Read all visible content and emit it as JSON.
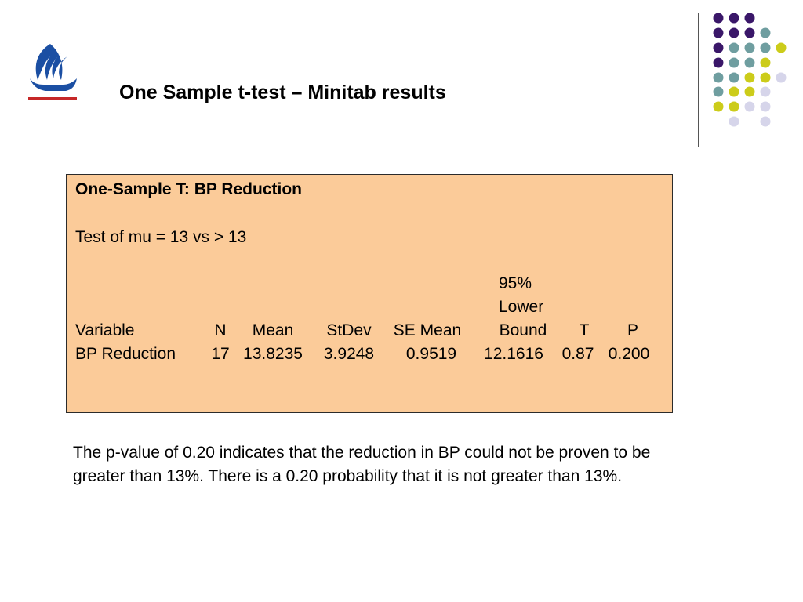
{
  "slide": {
    "title": "One Sample t-test – Minitab results"
  },
  "minitab_output": {
    "heading": "One-Sample T: BP Reduction",
    "test_line": "Test of mu = 13 vs > 13",
    "header_top_1": "95%",
    "header_top_2": "Lower",
    "columns": {
      "variable": "Variable",
      "n": "N",
      "mean": "Mean",
      "stdev": "StDev",
      "se_mean": "SE Mean",
      "bound": "Bound",
      "t": "T",
      "p": "P"
    },
    "row": {
      "variable": "BP Reduction",
      "n": "17",
      "mean": "13.8235",
      "stdev": "3.9248",
      "se_mean": "0.9519",
      "bound": "12.1616",
      "t": "0.87",
      "p": "0.200"
    }
  },
  "interpretation": "The p-value of 0.20 indicates that the reduction in BP could not be proven to be greater than 13%. There is a 0.20 probability that it is not greater than 13%.",
  "colors": {
    "box_background": "#fbcb99",
    "logo_blue": "#1b4fa3",
    "logo_red": "#c62828",
    "dot_purple": "#3a1769",
    "dot_teal": "#6f9ea0",
    "dot_yellow": "#cccc1a",
    "dot_lavender": "#d6d5ea"
  }
}
